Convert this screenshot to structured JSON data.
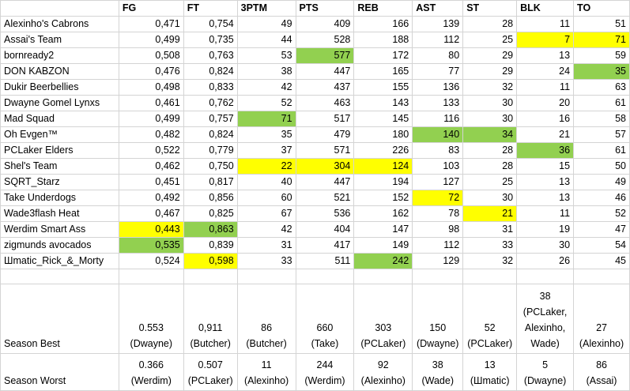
{
  "columns": [
    "",
    "FG",
    "FT",
    "3PTM",
    "PTS",
    "REB",
    "AST",
    "ST",
    "BLK",
    "TO"
  ],
  "teams": [
    {
      "name": "Alexinho's Cabrons",
      "values": [
        "0,471",
        "0,754",
        "49",
        "409",
        "166",
        "139",
        "28",
        "11",
        "51"
      ],
      "highlights": [
        "",
        "",
        "",
        "",
        "",
        "",
        "",
        "",
        ""
      ]
    },
    {
      "name": "Assai's Team",
      "values": [
        "0,499",
        "0,735",
        "44",
        "528",
        "188",
        "112",
        "25",
        "7",
        "71"
      ],
      "highlights": [
        "",
        "",
        "",
        "",
        "",
        "",
        "",
        "yellow",
        "yellow"
      ]
    },
    {
      "name": "bornready2",
      "values": [
        "0,508",
        "0,763",
        "53",
        "577",
        "172",
        "80",
        "29",
        "13",
        "59"
      ],
      "highlights": [
        "",
        "",
        "",
        "green",
        "",
        "",
        "",
        "",
        ""
      ]
    },
    {
      "name": "DON KABZON",
      "values": [
        "0,476",
        "0,824",
        "38",
        "447",
        "165",
        "77",
        "29",
        "24",
        "35"
      ],
      "highlights": [
        "",
        "",
        "",
        "",
        "",
        "",
        "",
        "",
        "green"
      ]
    },
    {
      "name": "Dukir Beerbellies",
      "values": [
        "0,498",
        "0,833",
        "42",
        "437",
        "155",
        "136",
        "32",
        "11",
        "63"
      ],
      "highlights": [
        "",
        "",
        "",
        "",
        "",
        "",
        "",
        "",
        ""
      ]
    },
    {
      "name": "Dwayne Gomel Lynxs",
      "values": [
        "0,461",
        "0,762",
        "52",
        "463",
        "143",
        "133",
        "30",
        "20",
        "61"
      ],
      "highlights": [
        "",
        "",
        "",
        "",
        "",
        "",
        "",
        "",
        ""
      ]
    },
    {
      "name": "Mad Squad",
      "values": [
        "0,499",
        "0,757",
        "71",
        "517",
        "145",
        "116",
        "30",
        "16",
        "58"
      ],
      "highlights": [
        "",
        "",
        "green",
        "",
        "",
        "",
        "",
        "",
        ""
      ]
    },
    {
      "name": "Oh Evgen™",
      "values": [
        "0,482",
        "0,824",
        "35",
        "479",
        "180",
        "140",
        "34",
        "21",
        "57"
      ],
      "highlights": [
        "",
        "",
        "",
        "",
        "",
        "green",
        "green",
        "",
        ""
      ]
    },
    {
      "name": "PCLaker Elders",
      "values": [
        "0,522",
        "0,779",
        "37",
        "571",
        "226",
        "83",
        "28",
        "36",
        "61"
      ],
      "highlights": [
        "",
        "",
        "",
        "",
        "",
        "",
        "",
        "green",
        ""
      ]
    },
    {
      "name": "Shel's Team",
      "values": [
        "0,462",
        "0,750",
        "22",
        "304",
        "124",
        "103",
        "28",
        "15",
        "50"
      ],
      "highlights": [
        "",
        "",
        "yellow",
        "yellow",
        "yellow",
        "",
        "",
        "",
        ""
      ]
    },
    {
      "name": "SQRT_Starz",
      "values": [
        "0,451",
        "0,817",
        "40",
        "447",
        "194",
        "127",
        "25",
        "13",
        "49"
      ],
      "highlights": [
        "",
        "",
        "",
        "",
        "",
        "",
        "",
        "",
        ""
      ]
    },
    {
      "name": "Take Underdogs",
      "values": [
        "0,492",
        "0,856",
        "60",
        "521",
        "152",
        "72",
        "30",
        "13",
        "46"
      ],
      "highlights": [
        "",
        "",
        "",
        "",
        "",
        "yellow",
        "",
        "",
        ""
      ]
    },
    {
      "name": "Wade3flash Heat",
      "values": [
        "0,467",
        "0,825",
        "67",
        "536",
        "162",
        "78",
        "21",
        "11",
        "52"
      ],
      "highlights": [
        "",
        "",
        "",
        "",
        "",
        "",
        "yellow",
        "",
        ""
      ]
    },
    {
      "name": "Werdim Smart Ass",
      "values": [
        "0,443",
        "0,863",
        "42",
        "404",
        "147",
        "98",
        "31",
        "19",
        "47"
      ],
      "highlights": [
        "yellow",
        "green",
        "",
        "",
        "",
        "",
        "",
        "",
        ""
      ]
    },
    {
      "name": "zigmunds avocados",
      "values": [
        "0,535",
        "0,839",
        "31",
        "417",
        "149",
        "112",
        "33",
        "30",
        "54"
      ],
      "highlights": [
        "green",
        "",
        "",
        "",
        "",
        "",
        "",
        "",
        ""
      ]
    },
    {
      "name": "Шmatic_Rick_&_Morty",
      "values": [
        "0,524",
        "0,598",
        "33",
        "511",
        "242",
        "129",
        "32",
        "26",
        "45"
      ],
      "highlights": [
        "",
        "yellow",
        "",
        "",
        "green",
        "",
        "",
        "",
        ""
      ]
    }
  ],
  "season_best": {
    "label": "Season Best",
    "cells": [
      [
        "0.553",
        "(Dwayne)"
      ],
      [
        "0,911",
        "(Butcher)"
      ],
      [
        "86",
        "(Butcher)"
      ],
      [
        "660",
        "(Take)"
      ],
      [
        "303",
        "(PCLaker)"
      ],
      [
        "150",
        "(Dwayne)"
      ],
      [
        "52",
        "(PCLaker)"
      ],
      [
        "38",
        "(PCLaker,",
        "Alexinho,",
        "Wade)"
      ],
      [
        "27",
        "(Alexinho)"
      ]
    ]
  },
  "season_worst": {
    "label": "Season Worst",
    "cells": [
      [
        "0.366",
        "(Werdim)"
      ],
      [
        "0.507",
        "(PCLaker)"
      ],
      [
        "11",
        "(Alexinho)"
      ],
      [
        "244",
        "(Werdim)"
      ],
      [
        "92",
        "(Alexinho)"
      ],
      [
        "38",
        "(Wade)"
      ],
      [
        "13",
        "(Шmatic)"
      ],
      [
        "5",
        "(Dwayne)"
      ],
      [
        "86",
        "(Assai)"
      ]
    ]
  },
  "colors": {
    "yellow": "#ffff00",
    "green": "#92d050",
    "grid": "#d4d4d4"
  }
}
